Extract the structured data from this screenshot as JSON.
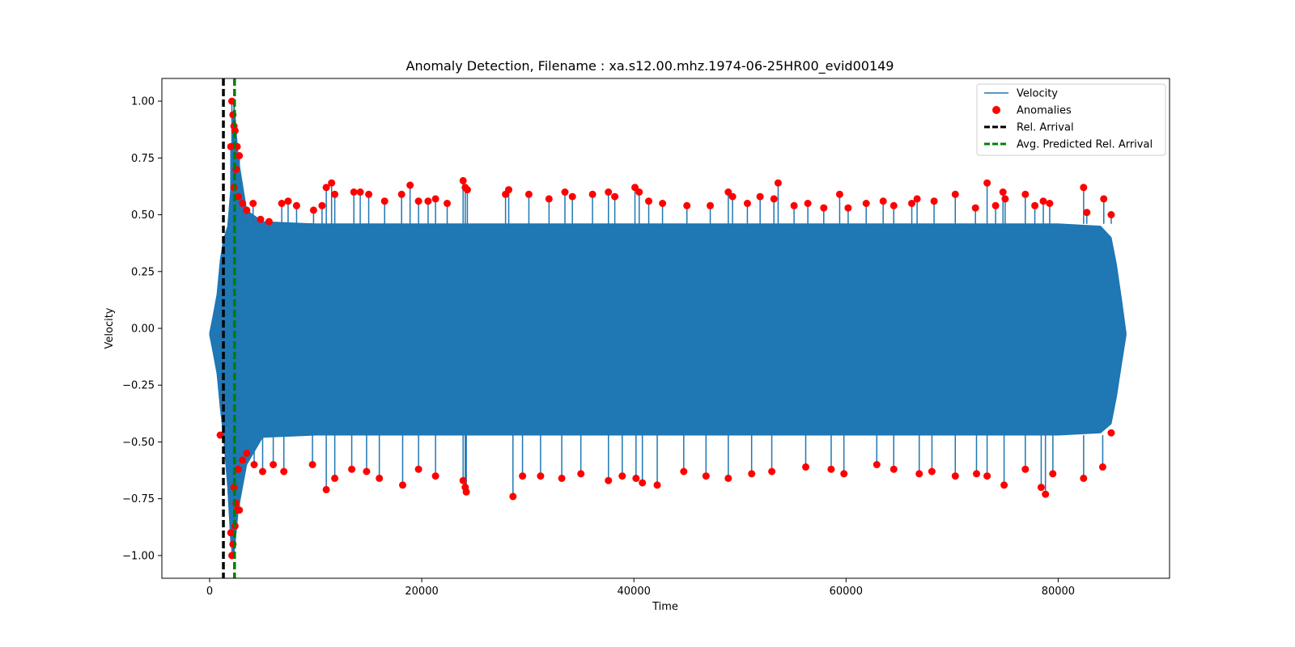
{
  "chart_data": {
    "type": "line",
    "title": "Anomaly Detection, Filename : xa.s12.00.mhz.1974-06-25HR00_evid00149",
    "xlabel": "Time",
    "ylabel": "Velocity",
    "xlim": [
      -4500,
      90500
    ],
    "ylim": [
      -1.1,
      1.1
    ],
    "x_ticks": [
      0,
      20000,
      40000,
      60000,
      80000
    ],
    "x_tick_labels": [
      "0",
      "20000",
      "40000",
      "60000",
      "80000"
    ],
    "y_ticks": [
      1.0,
      0.75,
      0.5,
      0.25,
      0.0,
      -0.25,
      -0.5,
      -0.75,
      -1.0
    ],
    "y_tick_labels": [
      "1.00",
      "0.75",
      "0.50",
      "0.25",
      "0.00",
      "−0.25",
      "−0.50",
      "−0.75",
      "−1.00"
    ],
    "grid": false,
    "legend_position": "top-right",
    "series": [
      {
        "name": "Velocity",
        "kind": "line",
        "color": "#1f77b4",
        "envelope": {
          "x": [
            0,
            300,
            700,
            1000,
            1300,
            1700,
            2000,
            2300,
            2700,
            3500,
            5000,
            10000,
            20000,
            40000,
            60000,
            80000,
            84000,
            85000,
            85500,
            86000,
            86400
          ],
          "upper": [
            -0.02,
            0.05,
            0.15,
            0.3,
            0.39,
            0.45,
            0.62,
            1.0,
            0.75,
            0.52,
            0.47,
            0.46,
            0.46,
            0.46,
            0.46,
            0.46,
            0.45,
            0.4,
            0.28,
            0.12,
            -0.02
          ],
          "lower": [
            -0.03,
            -0.1,
            -0.2,
            -0.35,
            -0.47,
            -0.7,
            -0.95,
            -1.0,
            -0.8,
            -0.6,
            -0.48,
            -0.47,
            -0.47,
            -0.47,
            -0.47,
            -0.47,
            -0.46,
            -0.42,
            -0.3,
            -0.15,
            -0.03
          ]
        }
      },
      {
        "name": "Anomalies",
        "kind": "scatter",
        "color": "#ff0000",
        "points": [
          [
            2100,
            1.0
          ],
          [
            2200,
            0.94
          ],
          [
            2300,
            0.89
          ],
          [
            2400,
            0.87
          ],
          [
            2000,
            0.8
          ],
          [
            2600,
            0.8
          ],
          [
            2800,
            0.76
          ],
          [
            2500,
            0.7
          ],
          [
            2300,
            0.62
          ],
          [
            2700,
            0.58
          ],
          [
            3100,
            0.55
          ],
          [
            3500,
            0.52
          ],
          [
            4100,
            0.55
          ],
          [
            4800,
            0.48
          ],
          [
            5600,
            0.47
          ],
          [
            6800,
            0.55
          ],
          [
            7400,
            0.56
          ],
          [
            8200,
            0.54
          ],
          [
            9800,
            0.52
          ],
          [
            10600,
            0.54
          ],
          [
            11000,
            0.62
          ],
          [
            11500,
            0.64
          ],
          [
            11800,
            0.59
          ],
          [
            13600,
            0.6
          ],
          [
            14200,
            0.6
          ],
          [
            15000,
            0.59
          ],
          [
            16500,
            0.56
          ],
          [
            18100,
            0.59
          ],
          [
            18900,
            0.63
          ],
          [
            19700,
            0.56
          ],
          [
            20600,
            0.56
          ],
          [
            21300,
            0.57
          ],
          [
            22400,
            0.55
          ],
          [
            23900,
            0.65
          ],
          [
            24100,
            0.62
          ],
          [
            24300,
            0.61
          ],
          [
            27900,
            0.59
          ],
          [
            28200,
            0.61
          ],
          [
            30100,
            0.59
          ],
          [
            32000,
            0.57
          ],
          [
            33500,
            0.6
          ],
          [
            34200,
            0.58
          ],
          [
            36100,
            0.59
          ],
          [
            37600,
            0.6
          ],
          [
            38200,
            0.58
          ],
          [
            40100,
            0.62
          ],
          [
            40500,
            0.6
          ],
          [
            41400,
            0.56
          ],
          [
            42700,
            0.55
          ],
          [
            45000,
            0.54
          ],
          [
            47200,
            0.54
          ],
          [
            48900,
            0.6
          ],
          [
            49300,
            0.58
          ],
          [
            50700,
            0.55
          ],
          [
            51900,
            0.58
          ],
          [
            53200,
            0.57
          ],
          [
            53600,
            0.64
          ],
          [
            55100,
            0.54
          ],
          [
            56400,
            0.55
          ],
          [
            57900,
            0.53
          ],
          [
            59400,
            0.59
          ],
          [
            60200,
            0.53
          ],
          [
            61900,
            0.55
          ],
          [
            63500,
            0.56
          ],
          [
            64500,
            0.54
          ],
          [
            66200,
            0.55
          ],
          [
            66700,
            0.57
          ],
          [
            68300,
            0.56
          ],
          [
            70300,
            0.59
          ],
          [
            72200,
            0.53
          ],
          [
            73300,
            0.64
          ],
          [
            74100,
            0.54
          ],
          [
            74800,
            0.6
          ],
          [
            75000,
            0.57
          ],
          [
            76900,
            0.59
          ],
          [
            77800,
            0.54
          ],
          [
            78600,
            0.56
          ],
          [
            79200,
            0.55
          ],
          [
            82400,
            0.62
          ],
          [
            82700,
            0.51
          ],
          [
            84300,
            0.57
          ],
          [
            85000,
            0.5
          ],
          [
            2100,
            -1.0
          ],
          [
            2200,
            -0.95
          ],
          [
            2400,
            -0.87
          ],
          [
            2000,
            -0.9
          ],
          [
            2600,
            -0.8
          ],
          [
            2800,
            -0.8
          ],
          [
            2500,
            -0.77
          ],
          [
            2300,
            -0.7
          ],
          [
            2700,
            -0.62
          ],
          [
            3100,
            -0.58
          ],
          [
            3500,
            -0.55
          ],
          [
            1000,
            -0.47
          ],
          [
            4200,
            -0.6
          ],
          [
            5000,
            -0.63
          ],
          [
            6000,
            -0.6
          ],
          [
            7000,
            -0.63
          ],
          [
            9700,
            -0.6
          ],
          [
            11000,
            -0.71
          ],
          [
            11800,
            -0.66
          ],
          [
            13400,
            -0.62
          ],
          [
            14800,
            -0.63
          ],
          [
            16000,
            -0.66
          ],
          [
            18200,
            -0.69
          ],
          [
            19700,
            -0.62
          ],
          [
            21300,
            -0.65
          ],
          [
            23900,
            -0.67
          ],
          [
            24100,
            -0.7
          ],
          [
            24200,
            -0.72
          ],
          [
            28600,
            -0.74
          ],
          [
            29500,
            -0.65
          ],
          [
            31200,
            -0.65
          ],
          [
            33200,
            -0.66
          ],
          [
            35000,
            -0.64
          ],
          [
            37600,
            -0.67
          ],
          [
            38900,
            -0.65
          ],
          [
            40200,
            -0.66
          ],
          [
            40800,
            -0.68
          ],
          [
            42200,
            -0.69
          ],
          [
            44700,
            -0.63
          ],
          [
            46800,
            -0.65
          ],
          [
            48900,
            -0.66
          ],
          [
            51100,
            -0.64
          ],
          [
            53000,
            -0.63
          ],
          [
            56200,
            -0.61
          ],
          [
            58600,
            -0.62
          ],
          [
            59800,
            -0.64
          ],
          [
            62900,
            -0.6
          ],
          [
            64500,
            -0.62
          ],
          [
            66900,
            -0.64
          ],
          [
            68100,
            -0.63
          ],
          [
            70300,
            -0.65
          ],
          [
            72300,
            -0.64
          ],
          [
            73300,
            -0.65
          ],
          [
            74900,
            -0.69
          ],
          [
            76900,
            -0.62
          ],
          [
            78400,
            -0.7
          ],
          [
            78800,
            -0.73
          ],
          [
            79500,
            -0.64
          ],
          [
            82400,
            -0.66
          ],
          [
            84200,
            -0.61
          ],
          [
            85000,
            -0.46
          ]
        ]
      },
      {
        "name": "Rel. Arrival",
        "kind": "vline",
        "color": "#000000",
        "x": 1300
      },
      {
        "name": "Avg. Predicted Rel. Arrival",
        "kind": "vline",
        "color": "#008000",
        "x": 2350
      }
    ]
  }
}
